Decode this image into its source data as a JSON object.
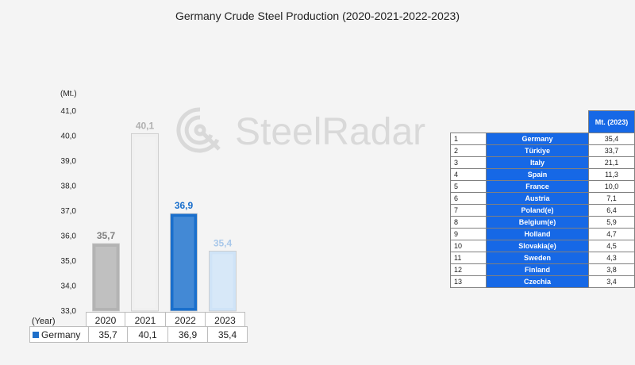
{
  "title": "Germany Crude Steel Production (2020-2021-2022-2023)",
  "watermark": "SteelRadar",
  "unit_label": "(Mt.)",
  "chart_data": {
    "type": "bar",
    "title": "Germany Crude Steel Production (2020-2021-2022-2023)",
    "ylabel": "(Mt.)",
    "xlabel": "(Year)",
    "ylim": [
      33.0,
      41.0
    ],
    "yticks": [
      "41,0",
      "40,0",
      "39,0",
      "38,0",
      "37,0",
      "36,0",
      "35,0",
      "34,0",
      "33,0"
    ],
    "categories": [
      "2020",
      "2021",
      "2022",
      "2023"
    ],
    "series": [
      {
        "name": "Germany",
        "values": [
          35.7,
          40.1,
          36.9,
          35.4
        ],
        "labels": [
          "35,7",
          "40,1",
          "36,9",
          "35,4"
        ]
      }
    ],
    "bar_colors": [
      "#b3b3b3",
      "#f0f0f0",
      "#1a6fcc",
      "#cfe3f7"
    ],
    "label_colors": [
      "#808080",
      "#b0b0b0",
      "#1a6fcc",
      "#a9c8ea"
    ]
  },
  "data_table": {
    "year_label": "(Year)",
    "series_name": "Germany",
    "years": [
      "2020",
      "2021",
      "2022",
      "2023"
    ],
    "values": [
      "35,7",
      "40,1",
      "36,9",
      "35,4"
    ]
  },
  "ranking": {
    "header": "Mt. (2023)",
    "rows": [
      {
        "rank": "1",
        "country": "Germany",
        "value": "35,4"
      },
      {
        "rank": "2",
        "country": "Türkiye",
        "value": "33,7"
      },
      {
        "rank": "3",
        "country": "Italy",
        "value": "21,1"
      },
      {
        "rank": "4",
        "country": "Spain",
        "value": "11,3"
      },
      {
        "rank": "5",
        "country": "France",
        "value": "10,0"
      },
      {
        "rank": "6",
        "country": "Austria",
        "value": "7,1"
      },
      {
        "rank": "7",
        "country": "Poland(e)",
        "value": "6,4"
      },
      {
        "rank": "8",
        "country": "Belgium(e)",
        "value": "5,9"
      },
      {
        "rank": "9",
        "country": "Holland",
        "value": "4,7"
      },
      {
        "rank": "10",
        "country": "Slovakia(e)",
        "value": "4,5"
      },
      {
        "rank": "11",
        "country": "Sweden",
        "value": "4,3"
      },
      {
        "rank": "12",
        "country": "Finland",
        "value": "3,8"
      },
      {
        "rank": "13",
        "country": "Czechia",
        "value": "3,4"
      }
    ]
  }
}
